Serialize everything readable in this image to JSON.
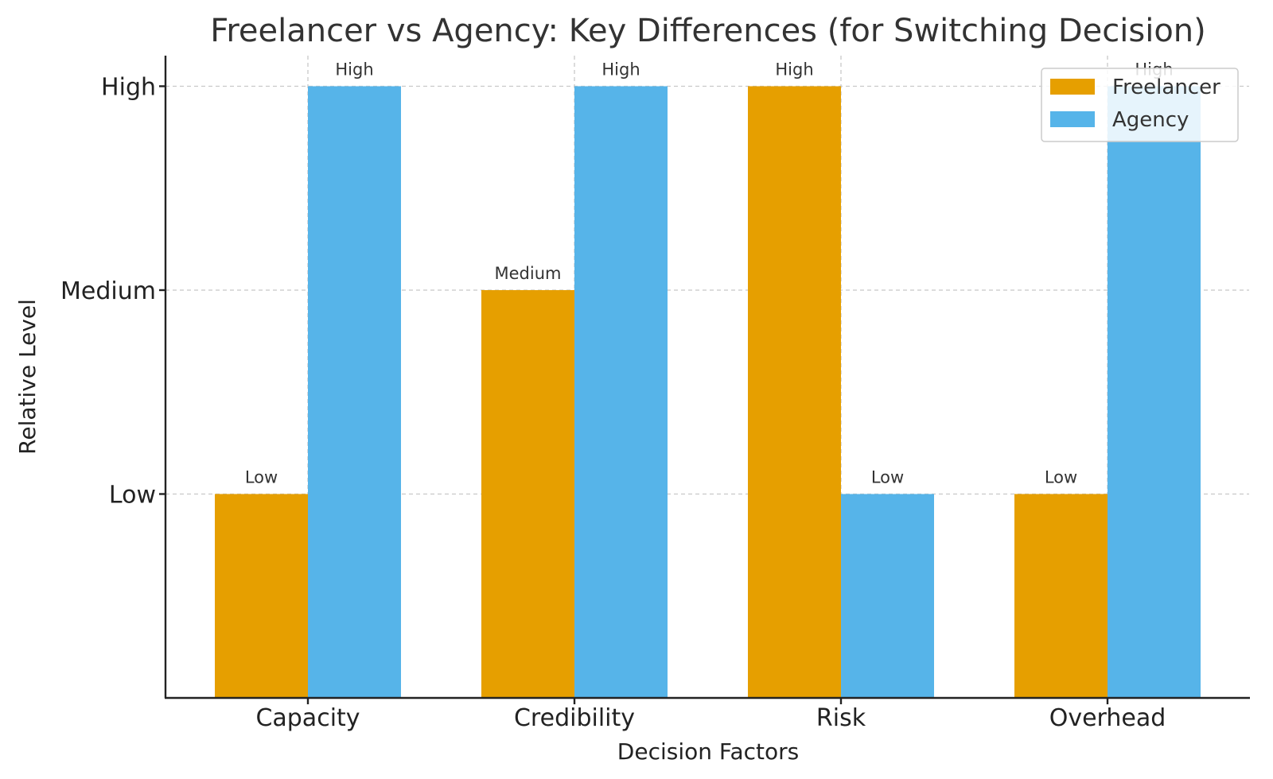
{
  "chart_data": {
    "type": "bar",
    "title": "Freelancer vs Agency: Key Differences (for Switching Decision)",
    "xlabel": "Decision Factors",
    "ylabel": "Relative Level",
    "categories": [
      "Capacity",
      "Credibility",
      "Risk",
      "Overhead"
    ],
    "y_tick_values": [
      1,
      2,
      3
    ],
    "y_tick_labels": [
      "Low",
      "Medium",
      "High"
    ],
    "ylim": [
      0,
      3.15
    ],
    "grid": true,
    "legend_position": "top-right",
    "series": [
      {
        "name": "Freelancer",
        "color": "#E69F00",
        "values": [
          1,
          2,
          3,
          1
        ],
        "labels": [
          "Low",
          "Medium",
          "High",
          "Low"
        ]
      },
      {
        "name": "Agency",
        "color": "#56B4E9",
        "values": [
          3,
          3,
          1,
          3
        ],
        "labels": [
          "High",
          "High",
          "Low",
          "High"
        ]
      }
    ]
  }
}
